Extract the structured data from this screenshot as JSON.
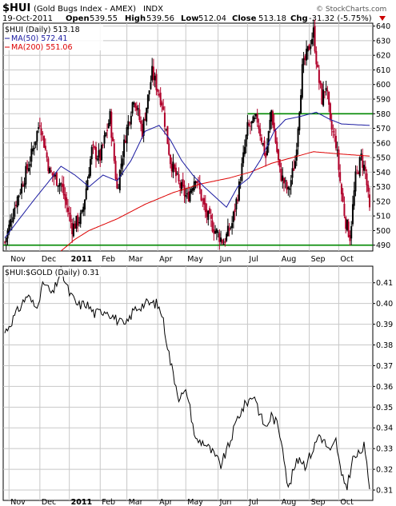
{
  "header": {
    "symbol": "$HUI",
    "name": "(Gold Bugs Index - AMEX)",
    "exchange": "INDX",
    "date": "19-Oct-2011",
    "open_label": "Open",
    "open": "539.55",
    "high_label": "High",
    "high": "539.56",
    "low_label": "Low",
    "low": "512.04",
    "close_label": "Close",
    "close": "513.18",
    "chg_label": "Chg",
    "chg": "-31.32 (-5.75%)",
    "watermark": "© StockCharts.com"
  },
  "chart_data": [
    {
      "type": "ohlc",
      "legend": [
        {
          "label": "$HUI (Daily) 513.18",
          "color": "#000000"
        },
        {
          "label": "MA(50) 572.41",
          "color": "#1a1aa0"
        },
        {
          "label": "MA(200) 551.06",
          "color": "#dd0000"
        }
      ],
      "ylim": [
        486,
        642
      ],
      "yticks": [
        490,
        500,
        510,
        520,
        530,
        540,
        550,
        560,
        570,
        580,
        590,
        600,
        610,
        620,
        630,
        640
      ],
      "xticks": [
        "Nov",
        "Dec",
        "2011",
        "Feb",
        "Mar",
        "Apr",
        "May",
        "Jun",
        "Jul",
        "Aug",
        "Sep",
        "Oct"
      ],
      "hlines": [
        {
          "value": 490,
          "from": "Nov",
          "to": "end",
          "color": "#008800"
        },
        {
          "value": 580,
          "from": "Jul",
          "to": "end",
          "color": "#008800"
        }
      ],
      "close_anchors": [
        [
          0,
          492
        ],
        [
          8,
          520
        ],
        [
          18,
          548
        ],
        [
          25,
          575
        ],
        [
          32,
          540
        ],
        [
          40,
          532
        ],
        [
          48,
          502
        ],
        [
          55,
          510
        ],
        [
          62,
          555
        ],
        [
          68,
          550
        ],
        [
          75,
          578
        ],
        [
          80,
          528
        ],
        [
          86,
          565
        ],
        [
          92,
          592
        ],
        [
          98,
          568
        ],
        [
          105,
          608
        ],
        [
          112,
          588
        ],
        [
          118,
          548
        ],
        [
          124,
          532
        ],
        [
          130,
          522
        ],
        [
          136,
          538
        ],
        [
          143,
          512
        ],
        [
          150,
          500
        ],
        [
          156,
          492
        ],
        [
          162,
          505
        ],
        [
          167,
          530
        ],
        [
          173,
          570
        ],
        [
          180,
          576
        ],
        [
          186,
          550
        ],
        [
          190,
          582
        ],
        [
          196,
          540
        ],
        [
          202,
          526
        ],
        [
          207,
          548
        ],
        [
          212,
          610
        ],
        [
          217,
          626
        ],
        [
          220,
          636
        ],
        [
          223,
          608
        ],
        [
          226,
          590
        ],
        [
          229,
          600
        ],
        [
          232,
          572
        ],
        [
          236,
          560
        ],
        [
          240,
          525
        ],
        [
          243,
          506
        ],
        [
          246,
          496
        ],
        [
          250,
          536
        ],
        [
          254,
          550
        ],
        [
          257,
          540
        ],
        [
          260,
          513
        ]
      ],
      "ma50_anchors": [
        [
          0,
          495
        ],
        [
          20,
          520
        ],
        [
          40,
          544
        ],
        [
          50,
          538
        ],
        [
          60,
          530
        ],
        [
          70,
          538
        ],
        [
          80,
          534
        ],
        [
          90,
          548
        ],
        [
          100,
          568
        ],
        [
          110,
          572
        ],
        [
          118,
          562
        ],
        [
          126,
          548
        ],
        [
          134,
          538
        ],
        [
          142,
          530
        ],
        [
          150,
          523
        ],
        [
          158,
          516
        ],
        [
          166,
          530
        ],
        [
          174,
          536
        ],
        [
          182,
          548
        ],
        [
          192,
          568
        ],
        [
          200,
          576
        ],
        [
          210,
          578
        ],
        [
          222,
          581
        ],
        [
          232,
          576
        ],
        [
          240,
          573
        ],
        [
          260,
          572
        ]
      ],
      "ma200_anchors": [
        [
          40,
          486
        ],
        [
          50,
          494
        ],
        [
          60,
          500
        ],
        [
          80,
          508
        ],
        [
          100,
          518
        ],
        [
          120,
          526
        ],
        [
          140,
          532
        ],
        [
          160,
          536
        ],
        [
          175,
          540
        ],
        [
          190,
          546
        ],
        [
          205,
          550
        ],
        [
          220,
          554
        ],
        [
          232,
          553
        ],
        [
          245,
          552
        ],
        [
          260,
          551
        ]
      ]
    },
    {
      "type": "line",
      "legend": [
        {
          "label": "$HUI:$GOLD (Daily) 0.31",
          "color": "#000000"
        }
      ],
      "ylim": [
        0.305,
        0.418
      ],
      "yticks": [
        0.31,
        0.32,
        0.33,
        0.34,
        0.35,
        0.36,
        0.37,
        0.38,
        0.39,
        0.4,
        0.41
      ],
      "ytick_labels": [
        "0.31",
        "0.32",
        "0.33",
        "0.34",
        "0.35",
        "0.36",
        "0.37",
        "0.38",
        "0.39",
        "0.40",
        "0.41"
      ],
      "xticks": [
        "Nov",
        "Dec",
        "2011",
        "Feb",
        "Mar",
        "Apr",
        "May",
        "Jun",
        "Jul",
        "Aug",
        "Sep",
        "Oct"
      ],
      "anchors": [
        [
          0,
          0.386
        ],
        [
          8,
          0.395
        ],
        [
          16,
          0.404
        ],
        [
          22,
          0.398
        ],
        [
          28,
          0.41
        ],
        [
          34,
          0.404
        ],
        [
          40,
          0.416
        ],
        [
          46,
          0.405
        ],
        [
          52,
          0.399
        ],
        [
          58,
          0.4
        ],
        [
          64,
          0.395
        ],
        [
          72,
          0.397
        ],
        [
          80,
          0.392
        ],
        [
          86,
          0.389
        ],
        [
          92,
          0.397
        ],
        [
          100,
          0.4
        ],
        [
          108,
          0.4
        ],
        [
          112,
          0.395
        ],
        [
          118,
          0.372
        ],
        [
          124,
          0.355
        ],
        [
          130,
          0.357
        ],
        [
          136,
          0.334
        ],
        [
          142,
          0.333
        ],
        [
          148,
          0.328
        ],
        [
          154,
          0.322
        ],
        [
          160,
          0.332
        ],
        [
          166,
          0.345
        ],
        [
          172,
          0.352
        ],
        [
          178,
          0.356
        ],
        [
          182,
          0.346
        ],
        [
          186,
          0.34
        ],
        [
          190,
          0.346
        ],
        [
          194,
          0.342
        ],
        [
          198,
          0.332
        ],
        [
          202,
          0.31
        ],
        [
          206,
          0.32
        ],
        [
          210,
          0.326
        ],
        [
          214,
          0.322
        ],
        [
          220,
          0.33
        ],
        [
          224,
          0.337
        ],
        [
          228,
          0.333
        ],
        [
          232,
          0.328
        ],
        [
          236,
          0.334
        ],
        [
          240,
          0.316
        ],
        [
          244,
          0.312
        ],
        [
          248,
          0.325
        ],
        [
          252,
          0.327
        ],
        [
          256,
          0.331
        ],
        [
          260,
          0.312
        ]
      ]
    }
  ]
}
